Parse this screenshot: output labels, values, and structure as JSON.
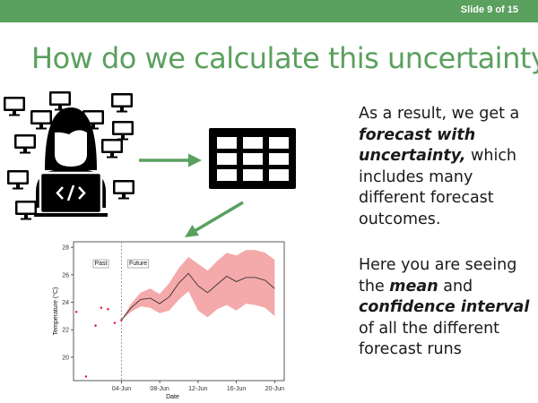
{
  "slide_number": "Slide 9 of 15",
  "title": "How do we calculate this uncertainty?",
  "colors": {
    "accent_green": "#5aa05e",
    "band": "#f4a9aa",
    "dots": "#e8002a"
  },
  "icons": [
    "computer-monitor-icon",
    "developer-icon",
    "table-grid-icon",
    "arrow-right-icon",
    "arrow-down-left-icon"
  ],
  "para1": {
    "t1": "As a result, we get a ",
    "em": "forecast with uncertainty,",
    "t2": " which includes many different forecast outcomes."
  },
  "para2": {
    "t1": "Here you are seeing the ",
    "em1": "mean",
    "t2": " and ",
    "em2": "confidence interval",
    "t3": " of all the different forecast runs"
  },
  "chart_data": {
    "type": "scatter",
    "xlabel": "Date",
    "ylabel": "Temperature (°C)",
    "x_ticks": [
      "04-Jun",
      "08-Jun",
      "12-Jun",
      "16-Jun",
      "20-Jun"
    ],
    "y_ticks": [
      "20",
      "22",
      "24",
      "26",
      "28"
    ],
    "xlim": [
      0,
      22
    ],
    "ylim": [
      18.3,
      28.4
    ],
    "annotations": [
      "Past",
      "Future"
    ],
    "divider_x": 5,
    "past_points": {
      "x": [
        0.3,
        1.3,
        2.3,
        2.9,
        3.6,
        4.3,
        5
      ],
      "y": [
        23.3,
        18.6,
        22.3,
        23.6,
        23.5,
        22.5,
        22.7
      ]
    },
    "forecast": {
      "x": [
        5,
        6,
        7,
        8,
        9,
        10,
        11,
        12,
        13,
        14,
        15,
        16,
        17,
        18,
        19,
        20,
        21
      ],
      "mean": [
        22.7,
        23.6,
        24.2,
        24.3,
        23.9,
        24.4,
        25.4,
        26.1,
        25.2,
        24.7,
        25.3,
        25.9,
        25.5,
        25.8,
        25.8,
        25.6,
        25.0
      ],
      "lower": [
        22.7,
        23.3,
        23.7,
        23.6,
        23.2,
        23.4,
        24.2,
        24.8,
        23.4,
        22.9,
        23.5,
        23.8,
        23.4,
        23.9,
        23.8,
        23.6,
        23.0
      ],
      "upper": [
        22.7,
        23.9,
        24.7,
        25.0,
        24.6,
        25.4,
        26.5,
        27.3,
        26.8,
        26.3,
        27.0,
        27.6,
        27.4,
        27.8,
        27.8,
        27.6,
        27.1
      ]
    }
  }
}
